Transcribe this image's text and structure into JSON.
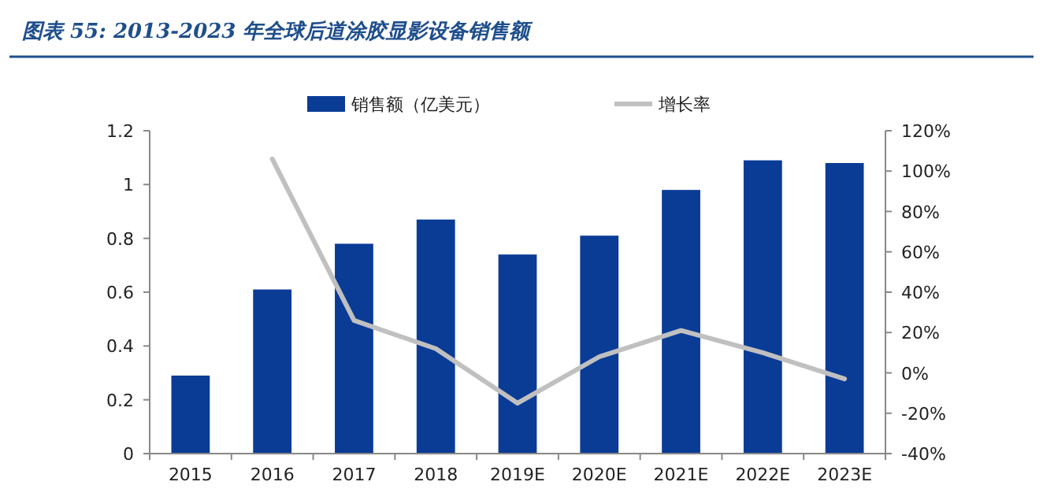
{
  "chart_data": {
    "type": "bar",
    "title": "图表 55:  2013-2023 年全球后道涂胶显影设备销售额",
    "categories": [
      "2015",
      "2016",
      "2017",
      "2018",
      "2019E",
      "2020E",
      "2021E",
      "2022E",
      "2023E"
    ],
    "series": [
      {
        "name": "销售额（亿美元）",
        "color": "#0a3c96",
        "values": [
          0.29,
          0.61,
          0.78,
          0.87,
          0.74,
          0.81,
          0.98,
          1.09,
          1.08
        ]
      },
      {
        "name": "增长率",
        "color": "#c0c0c0",
        "type": "line",
        "axis": "y2",
        "values": [
          null,
          106,
          26,
          12,
          -15,
          8,
          21,
          10,
          -3
        ]
      }
    ],
    "ylim": [
      0,
      1.2
    ],
    "yticks": [
      0,
      0.2,
      0.4,
      0.6,
      0.8,
      1,
      1.2
    ],
    "y2lim": [
      -40,
      120
    ],
    "y2ticks": [
      {
        "value": -40,
        "label": "-40%"
      },
      {
        "value": -20,
        "label": "-20%"
      },
      {
        "value": 0,
        "label": "0%"
      },
      {
        "value": 20,
        "label": "20%"
      },
      {
        "value": 40,
        "label": "40%"
      },
      {
        "value": 60,
        "label": "60%"
      },
      {
        "value": 80,
        "label": "80%"
      },
      {
        "value": 100,
        "label": "100%"
      },
      {
        "value": 120,
        "label": "120%"
      }
    ],
    "legend": "top"
  }
}
